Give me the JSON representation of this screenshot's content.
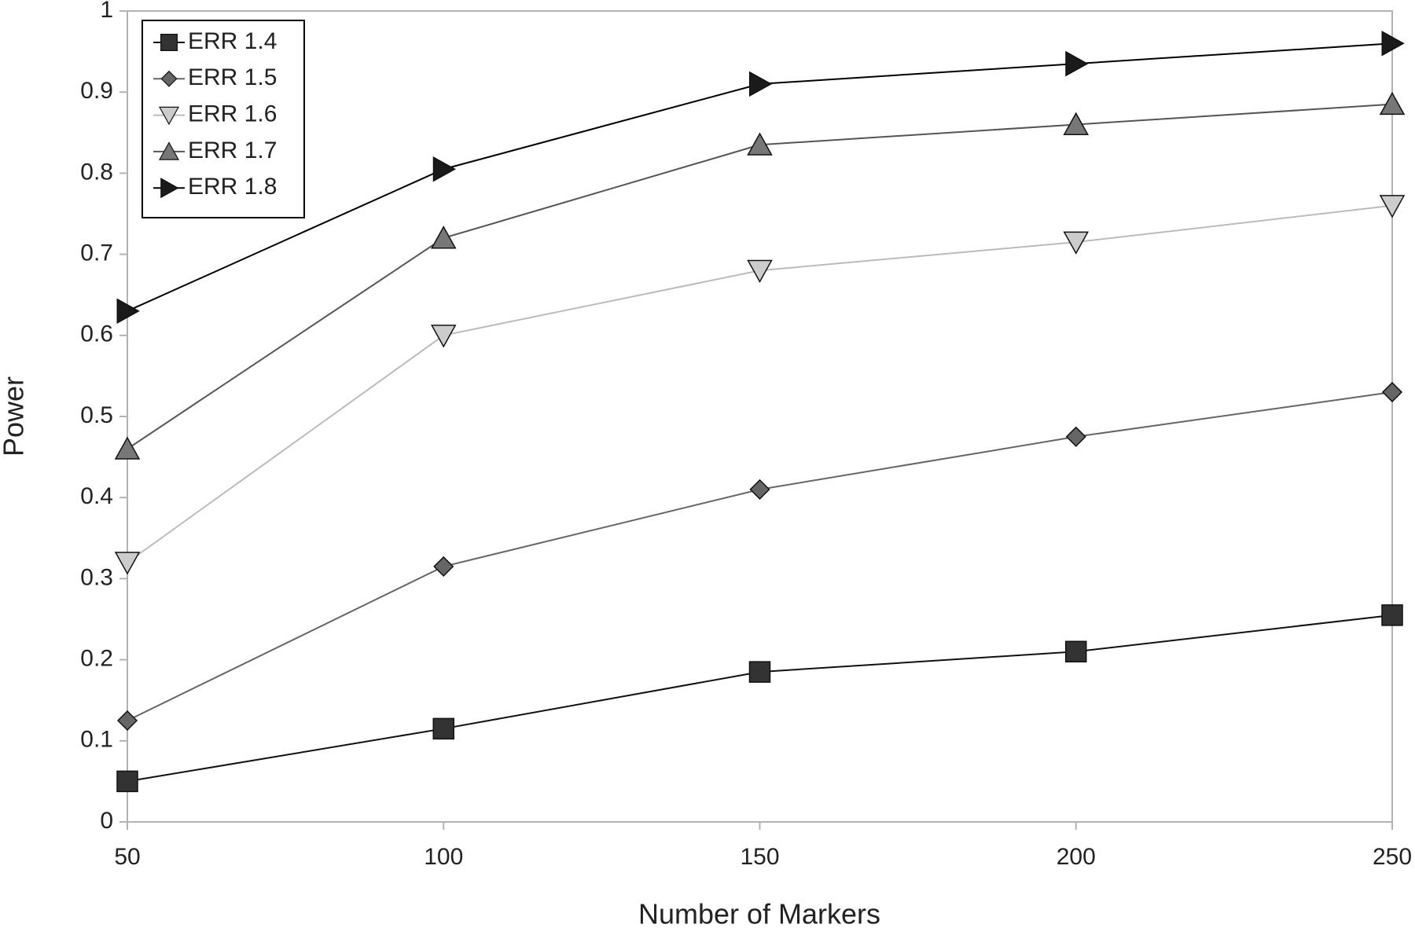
{
  "chart_data": {
    "type": "line",
    "x_label": "Number of Markers",
    "y_label": "Power",
    "x": [
      50,
      100,
      150,
      200,
      250
    ],
    "series": [
      {
        "name": "ERR 1.4",
        "color": "#333333",
        "line_color": "#111111",
        "marker": "square",
        "values": [
          0.05,
          0.115,
          0.185,
          0.21,
          0.255
        ]
      },
      {
        "name": "ERR 1.5",
        "color": "#666666",
        "line_color": "#666666",
        "marker": "diamond",
        "values": [
          0.125,
          0.315,
          0.41,
          0.475,
          0.53
        ]
      },
      {
        "name": "ERR 1.6",
        "color": "#cccccc",
        "line_color": "#bbbbbb",
        "marker": "triangle-down",
        "values": [
          0.32,
          0.6,
          0.68,
          0.715,
          0.76
        ]
      },
      {
        "name": "ERR 1.7",
        "color": "#777777",
        "line_color": "#555555",
        "marker": "triangle-up",
        "values": [
          0.46,
          0.72,
          0.835,
          0.86,
          0.885
        ]
      },
      {
        "name": "ERR 1.8",
        "color": "#1a1a1a",
        "line_color": "#000000",
        "marker": "triangle-right",
        "values": [
          0.63,
          0.805,
          0.91,
          0.935,
          0.96
        ]
      }
    ],
    "xlim": [
      50,
      250
    ],
    "xticks": [
      50,
      100,
      150,
      200,
      250
    ],
    "ylim": [
      0,
      1
    ],
    "yticks": [
      0,
      0.1,
      0.2,
      0.3,
      0.4,
      0.5,
      0.6,
      0.7,
      0.8,
      0.9,
      1
    ],
    "grid": false,
    "legend": "upper left"
  }
}
